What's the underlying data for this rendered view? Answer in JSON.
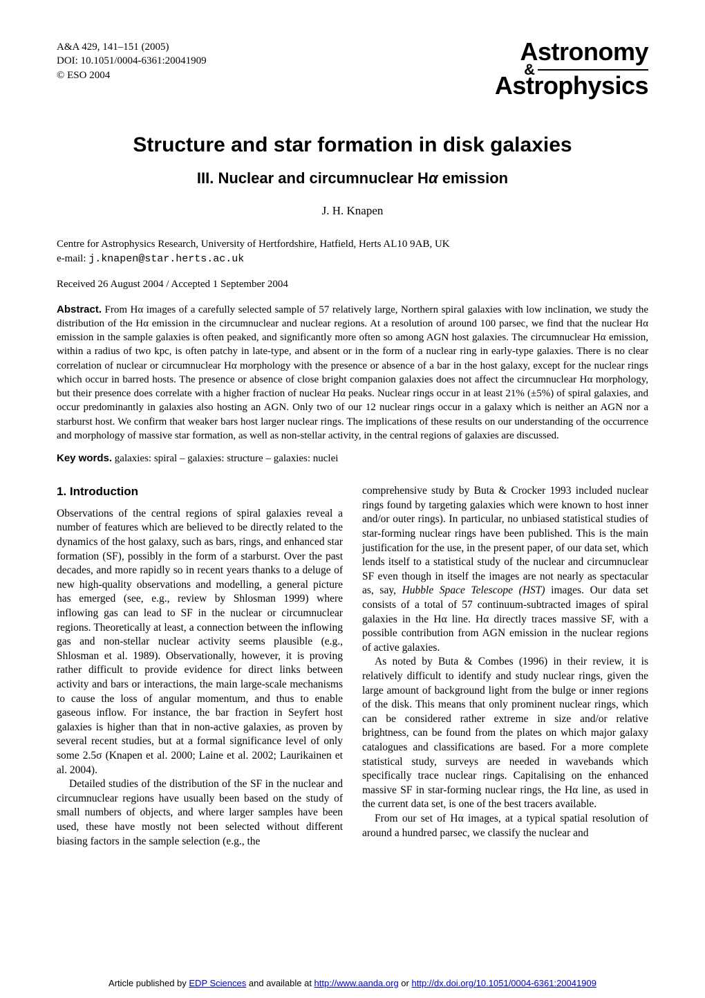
{
  "meta": {
    "citation": "A&A 429, 141–151 (2005)",
    "doi": "DOI: 10.1051/0004-6361:20041909",
    "copyright": "© ESO 2004"
  },
  "logo": {
    "line1": "Astronomy",
    "amp": "&",
    "line2": "Astrophysics"
  },
  "title": "Structure and star formation in disk galaxies",
  "subtitle_prefix": "III. Nuclear and circumnuclear H",
  "subtitle_alpha": "α",
  "subtitle_suffix": " emission",
  "author": "J. H. Knapen",
  "affiliation": "Centre for Astrophysics Research, University of Hertfordshire, Hatfield, Herts AL10 9AB, UK",
  "email_label": "e-mail: ",
  "email": "j.knapen@star.herts.ac.uk",
  "received": "Received 26 August 2004 / Accepted 1 September 2004",
  "abstract_label": "Abstract.",
  "abstract_text": " From Hα images of a carefully selected sample of 57 relatively large, Northern spiral galaxies with low inclination, we study the distribution of the Hα emission in the circumnuclear and nuclear regions. At a resolution of around 100 parsec, we find that the nuclear Hα emission in the sample galaxies is often peaked, and significantly more often so among AGN host galaxies. The circumnuclear Hα emission, within a radius of two kpc, is often patchy in late-type, and absent or in the form of a nuclear ring in early-type galaxies. There is no clear correlation of nuclear or circumnuclear Hα morphology with the presence or absence of a bar in the host galaxy, except for the nuclear rings which occur in barred hosts. The presence or absence of close bright companion galaxies does not affect the circumnuclear Hα morphology, but their presence does correlate with a higher fraction of nuclear Hα peaks. Nuclear rings occur in at least 21% (±5%) of spiral galaxies, and occur predominantly in galaxies also hosting an AGN. Only two of our 12 nuclear rings occur in a galaxy which is neither an AGN nor a starburst host. We confirm that weaker bars host larger nuclear rings. The implications of these results on our understanding of the occurrence and morphology of massive star formation, as well as non-stellar activity, in the central regions of galaxies are discussed.",
  "keywords_label": "Key words.",
  "keywords_text": " galaxies: spiral – galaxies: structure – galaxies: nuclei",
  "section1_heading": "1. Introduction",
  "col1_p1": "Observations of the central regions of spiral galaxies reveal a number of features which are believed to be directly related to the dynamics of the host galaxy, such as bars, rings, and enhanced star formation (SF), possibly in the form of a starburst. Over the past decades, and more rapidly so in recent years thanks to a deluge of new high-quality observations and modelling, a general picture has emerged (see, e.g., review by Shlosman 1999) where inflowing gas can lead to SF in the nuclear or circumnuclear regions. Theoretically at least, a connection between the inflowing gas and non-stellar nuclear activity seems plausible (e.g., Shlosman et al. 1989). Observationally, however, it is proving rather difficult to provide evidence for direct links between activity and bars or interactions, the main large-scale mechanisms to cause the loss of angular momentum, and thus to enable gaseous inflow. For instance, the bar fraction in Seyfert host galaxies is higher than that in non-active galaxies, as proven by several recent studies, but at a formal significance level of only some 2.5σ (Knapen et al. 2000; Laine et al. 2002; Laurikainen et al. 2004).",
  "col1_p2": "Detailed studies of the distribution of the SF in the nuclear and circumnuclear regions have usually been based on the study of small numbers of objects, and where larger samples have been used, these have mostly not been selected without different biasing factors in the sample selection (e.g., the",
  "col2_p1a": "comprehensive study by Buta & Crocker 1993 included nuclear rings found by targeting galaxies which were known to host inner and/or outer rings). In particular, no unbiased statistical studies of star-forming nuclear rings have been published. This is the main justification for the use, in the present paper, of our data set, which lends itself to a statistical study of the nuclear and circumnuclear SF even though in itself the images are not nearly as spectacular as, say, ",
  "col2_p1_hst": "Hubble Space Telescope (HST)",
  "col2_p1b": " images. Our data set consists of a total of 57 continuum-subtracted images of spiral galaxies in the Hα line. Hα directly traces massive SF, with a possible contribution from AGN emission in the nuclear regions of active galaxies.",
  "col2_p2": "As noted by Buta & Combes (1996) in their review, it is relatively difficult to identify and study nuclear rings, given the large amount of background light from the bulge or inner regions of the disk. This means that only prominent nuclear rings, which can be considered rather extreme in size and/or relative brightness, can be found from the plates on which major galaxy catalogues and classifications are based. For a more complete statistical study, surveys are needed in wavebands which specifically trace nuclear rings. Capitalising on the enhanced massive SF in star-forming nuclear rings, the Hα line, as used in the current data set, is one of the best tracers available.",
  "col2_p3": "From our set of Hα images, at a typical spatial resolution of around a hundred parsec, we classify the nuclear and",
  "footer": {
    "prefix": "Article published by ",
    "link1_text": "EDP Sciences",
    "mid1": " and available at ",
    "link2_text": "http://www.aanda.org",
    "mid2": " or ",
    "link3_text": "http://dx.doi.org/10.1051/0004-6361:20041909"
  }
}
